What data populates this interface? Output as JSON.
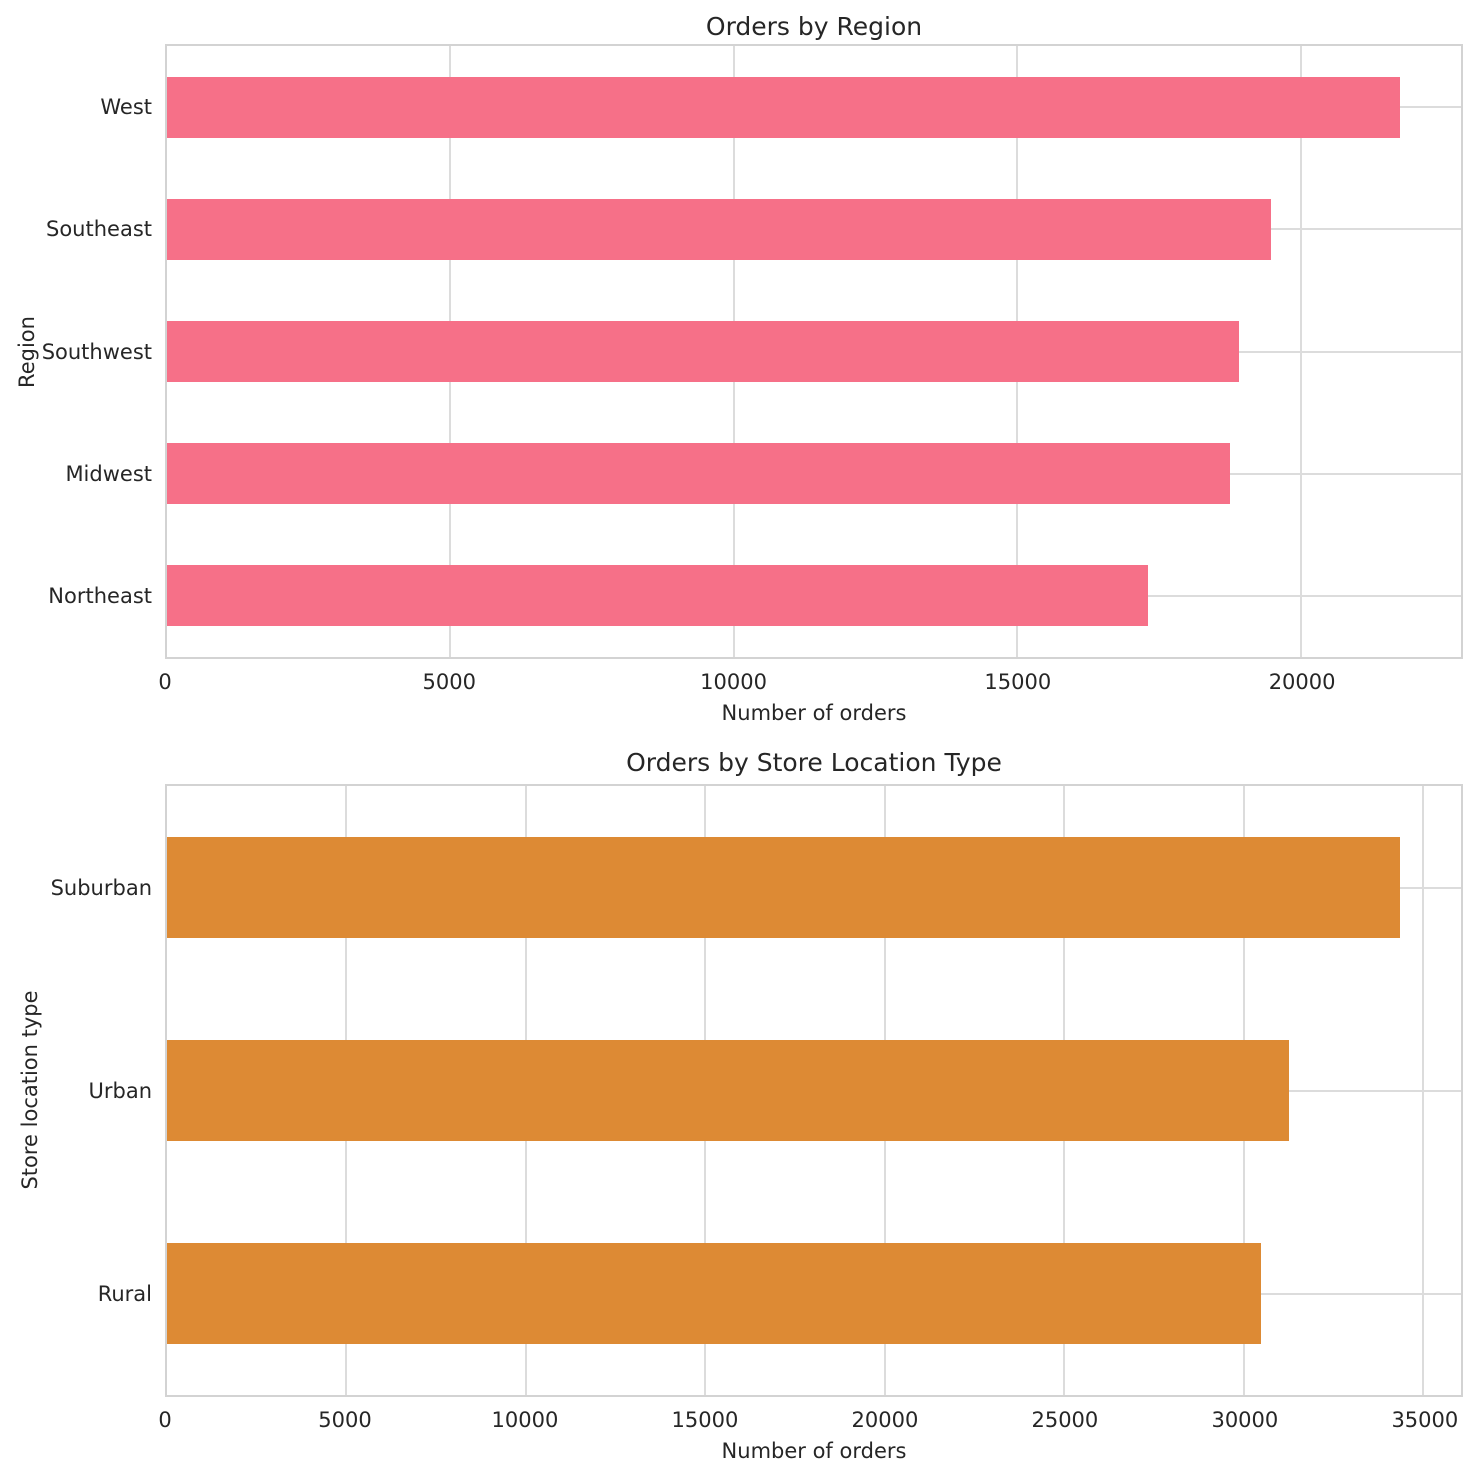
{
  "figure": {
    "background": "#ffffff",
    "text_color": "#262626",
    "grid_color": "#dcdcdc",
    "spine_color": "#d3d3d3"
  },
  "chart_data": [
    {
      "type": "bar",
      "orientation": "horizontal",
      "title": "Orders by Region",
      "xlabel": "Number of orders",
      "ylabel": "Region",
      "categories": [
        "West",
        "Southeast",
        "Southwest",
        "Midwest",
        "Northeast"
      ],
      "values": [
        21750,
        19470,
        18910,
        18750,
        17310
      ],
      "bar_color": "#f67088",
      "bar_thickness_fraction": 0.5,
      "xlim": [
        0,
        22830
      ],
      "xticks": [
        0,
        5000,
        10000,
        15000,
        20000
      ],
      "grid": true,
      "legend": "none"
    },
    {
      "type": "bar",
      "orientation": "horizontal",
      "title": "Orders by Store Location Type",
      "xlabel": "Number of orders",
      "ylabel": "Store location type",
      "categories": [
        "Suburban",
        "Urban",
        "Rural"
      ],
      "values": [
        34370,
        31270,
        30490
      ],
      "bar_color": "#dd8a34",
      "bar_thickness_fraction": 0.5,
      "xlim": [
        0,
        36060
      ],
      "xticks": [
        0,
        5000,
        10000,
        15000,
        20000,
        25000,
        30000,
        35000
      ],
      "grid": true,
      "legend": "none"
    }
  ]
}
